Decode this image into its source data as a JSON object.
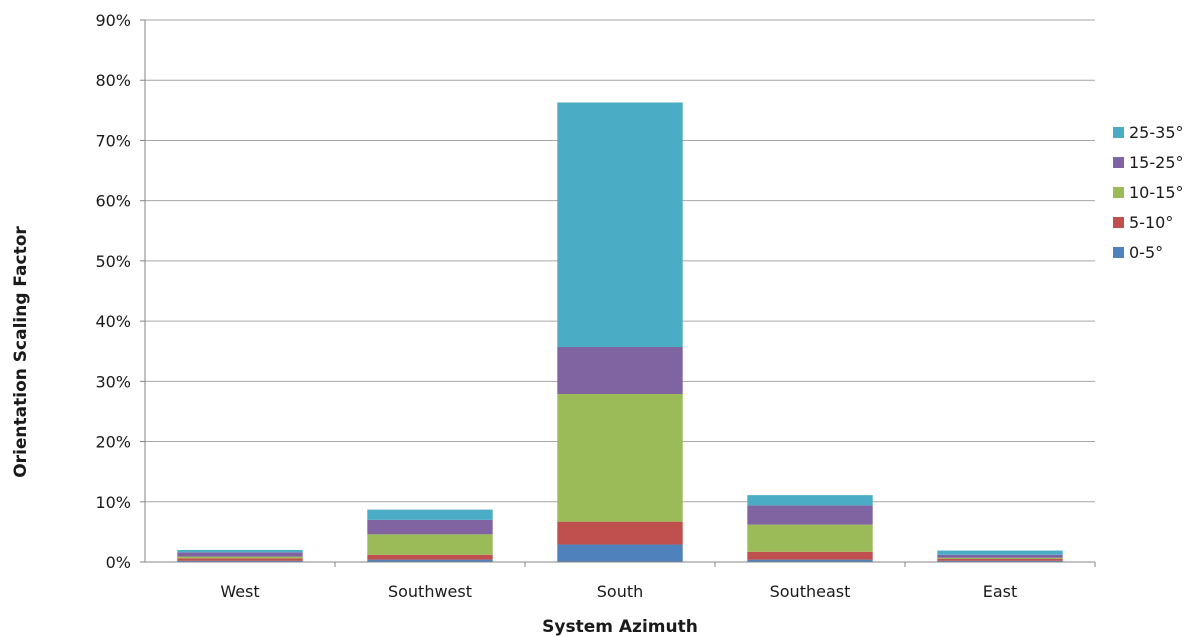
{
  "chart_data": {
    "type": "bar",
    "stacked": true,
    "title": "",
    "xlabel": "System Azimuth",
    "ylabel": "Orientation Scaling Factor",
    "categories": [
      "West",
      "Southwest",
      "South",
      "Southeast",
      "East"
    ],
    "ylim": [
      0,
      90
    ],
    "yticks": [
      0,
      10,
      20,
      30,
      40,
      50,
      60,
      70,
      80,
      90
    ],
    "ytick_labels": [
      "0%",
      "10%",
      "20%",
      "30%",
      "40%",
      "50%",
      "60%",
      "70%",
      "80%",
      "90%"
    ],
    "y_unit": "%",
    "grid": true,
    "legend_position": "right",
    "series": [
      {
        "name": "0-5°",
        "color": "#4f81bd",
        "values": [
          0.2,
          0.4,
          2.9,
          0.4,
          0.2
        ]
      },
      {
        "name": "5-10°",
        "color": "#c0504d",
        "values": [
          0.4,
          0.8,
          3.8,
          1.3,
          0.3
        ]
      },
      {
        "name": "10-15°",
        "color": "#9bbb59",
        "values": [
          0.3,
          3.4,
          21.2,
          4.5,
          0.2
        ]
      },
      {
        "name": "15-25°",
        "color": "#8064a2",
        "values": [
          0.7,
          2.4,
          7.8,
          3.2,
          0.5
        ]
      },
      {
        "name": "25-35°",
        "color": "#4bacc6",
        "values": [
          0.4,
          1.7,
          40.6,
          1.7,
          0.7
        ]
      }
    ]
  }
}
